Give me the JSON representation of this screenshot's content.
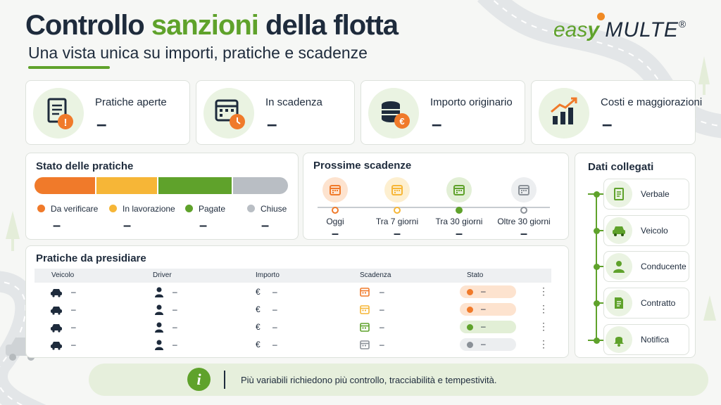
{
  "header": {
    "title_part1": "Controllo ",
    "title_highlight": "sanzioni",
    "title_part2": " della flotta",
    "subtitle": "Una vista unica su importi, pratiche e scadenze"
  },
  "logo": {
    "easy": "eas",
    "multe": "MULTE",
    "reg": "®"
  },
  "colors": {
    "accent": "#5fa22b",
    "orange": "#f07a2a",
    "yellow": "#f6b637",
    "green": "#5fa22b",
    "gray": "#b9bec4",
    "dark": "#1e2b3c"
  },
  "kpis": [
    {
      "title": "Pratiche aperte",
      "value": "–",
      "icon": "document-alert-icon"
    },
    {
      "title": "In scadenza",
      "value": "–",
      "icon": "calendar-clock-icon"
    },
    {
      "title": "Importo originario",
      "value": "–",
      "icon": "coins-euro-icon"
    },
    {
      "title": "Costi e maggiorazioni",
      "value": "–",
      "icon": "rising-chart-icon"
    }
  ],
  "stato": {
    "title": "Stato delle pratiche",
    "items": [
      {
        "label": "Da verificare",
        "value": "–"
      },
      {
        "label": "In lavorazione",
        "value": "–"
      },
      {
        "label": "Pagate",
        "value": "–"
      },
      {
        "label": "Chiuse",
        "value": "–"
      }
    ]
  },
  "scadenze": {
    "title": "Prossime scadenze",
    "items": [
      {
        "label": "Oggi",
        "value": "–"
      },
      {
        "label": "Tra 7 giorni",
        "value": "–"
      },
      {
        "label": "Tra 30 giorni",
        "value": "–"
      },
      {
        "label": "Oltre 30 giorni",
        "value": "–"
      }
    ]
  },
  "dati": {
    "title": "Dati collegati",
    "items": [
      {
        "label": "Verbale",
        "icon": "document-icon"
      },
      {
        "label": "Veicolo",
        "icon": "car-icon"
      },
      {
        "label": "Conducente",
        "icon": "person-icon"
      },
      {
        "label": "Contratto",
        "icon": "contract-icon"
      },
      {
        "label": "Notifica",
        "icon": "bell-icon"
      }
    ]
  },
  "pratiche": {
    "title": "Pratiche da presidiare",
    "columns": [
      "Veicolo",
      "Driver",
      "Importo",
      "Scadenza",
      "Stato"
    ],
    "rows": [
      {
        "veicolo": "–",
        "driver": "–",
        "importo": "–",
        "scadenza": "–",
        "stato": "–"
      },
      {
        "veicolo": "–",
        "driver": "–",
        "importo": "–",
        "scadenza": "–",
        "stato": "–"
      },
      {
        "veicolo": "–",
        "driver": "–",
        "importo": "–",
        "scadenza": "–",
        "stato": "–"
      },
      {
        "veicolo": "–",
        "driver": "–",
        "importo": "–",
        "scadenza": "–",
        "stato": "–"
      }
    ],
    "euro": "€",
    "kebab": "⋮"
  },
  "footer": {
    "icon": "i",
    "text": "Più variabili richiedono più controllo, tracciabilità e tempestività."
  }
}
